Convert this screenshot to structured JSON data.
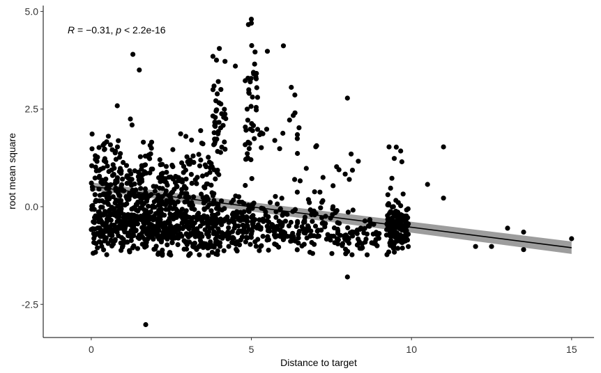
{
  "chart_data": {
    "type": "scatter",
    "xlabel": "Distance to target",
    "ylabel": "root mean square",
    "xlim": [
      -1.5,
      15.7
    ],
    "ylim": [
      -3.35,
      5.15
    ],
    "x_ticks": [
      0,
      5,
      10,
      15
    ],
    "x_tick_labels": [
      "0",
      "5",
      "10",
      "15"
    ],
    "y_ticks": [
      -2.5,
      0.0,
      2.5,
      5.0
    ],
    "y_tick_labels": [
      "-2.5",
      "0.0",
      "2.5",
      "5.0"
    ],
    "grid": false,
    "annotation": {
      "r_symbol": "R",
      "r_text": " = −0.31, ",
      "p_symbol": "p",
      "p_text": " < 2.2e-16"
    },
    "regression": {
      "x": [
        0,
        15
      ],
      "y": [
        0.52,
        -1.05
      ],
      "ci_halfwidth_left": 0.1,
      "ci_halfwidth_right": 0.16,
      "ci_color": "#8c8c8c",
      "line_color": "#000000"
    },
    "point_color": "#000000",
    "notable_points": [
      {
        "x": 1.3,
        "y": 3.9
      },
      {
        "x": 1.5,
        "y": 3.5
      },
      {
        "x": 1.7,
        "y": -3.02
      },
      {
        "x": 4.0,
        "y": 4.05
      },
      {
        "x": 5.0,
        "y": 4.8
      },
      {
        "x": 6.0,
        "y": 4.12
      },
      {
        "x": 5.5,
        "y": 3.98
      },
      {
        "x": 8.0,
        "y": 2.78
      },
      {
        "x": 11.0,
        "y": 1.53
      },
      {
        "x": 11.0,
        "y": 0.22
      },
      {
        "x": 10.5,
        "y": 0.57
      },
      {
        "x": 12.0,
        "y": -1.02
      },
      {
        "x": 12.5,
        "y": -1.02
      },
      {
        "x": 13.0,
        "y": -0.55
      },
      {
        "x": 13.5,
        "y": -0.65
      },
      {
        "x": 13.5,
        "y": -1.1
      },
      {
        "x": 15.0,
        "y": -0.82
      },
      {
        "x": 8.0,
        "y": -1.8
      },
      {
        "x": 9.3,
        "y": 1.53
      },
      {
        "x": 9.7,
        "y": 1.15
      },
      {
        "x": 5.0,
        "y": 4.7
      },
      {
        "x": 4.5,
        "y": 3.6
      },
      {
        "x": 3.8,
        "y": 3.85
      }
    ],
    "clusters": [
      {
        "x_min": 0.0,
        "x_max": 1.0,
        "y_mean": 0.3,
        "y_sd": 0.7,
        "n": 170
      },
      {
        "x_min": 0.0,
        "x_max": 1.0,
        "y_mean": -0.55,
        "y_sd": 0.25,
        "n": 80
      },
      {
        "x_min": 1.0,
        "x_max": 2.0,
        "y_mean": 0.2,
        "y_sd": 0.7,
        "n": 150
      },
      {
        "x_min": 1.0,
        "x_max": 2.0,
        "y_mean": -0.5,
        "y_sd": 0.25,
        "n": 80
      },
      {
        "x_min": 2.0,
        "x_max": 3.0,
        "y_mean": 0.1,
        "y_sd": 0.75,
        "n": 150
      },
      {
        "x_min": 2.0,
        "x_max": 3.0,
        "y_mean": -0.5,
        "y_sd": 0.25,
        "n": 80
      },
      {
        "x_min": 3.0,
        "x_max": 4.0,
        "y_mean": 0.0,
        "y_sd": 0.8,
        "n": 120
      },
      {
        "x_min": 3.0,
        "x_max": 4.0,
        "y_mean": -0.55,
        "y_sd": 0.25,
        "n": 70
      },
      {
        "x_min": 3.8,
        "x_max": 4.2,
        "y_mean": 2.4,
        "y_sd": 0.6,
        "n": 40
      },
      {
        "x_min": 4.0,
        "x_max": 5.0,
        "y_mean": -0.45,
        "y_sd": 0.35,
        "n": 110
      },
      {
        "x_min": 4.8,
        "x_max": 5.2,
        "y_mean": 2.6,
        "y_sd": 0.8,
        "n": 40
      },
      {
        "x_min": 5.0,
        "x_max": 6.0,
        "y_mean": -0.5,
        "y_sd": 0.35,
        "n": 90
      },
      {
        "x_min": 5.0,
        "x_max": 6.5,
        "y_mean": 1.8,
        "y_sd": 0.8,
        "n": 20
      },
      {
        "x_min": 6.0,
        "x_max": 7.0,
        "y_mean": -0.6,
        "y_sd": 0.3,
        "n": 60
      },
      {
        "x_min": 6.0,
        "x_max": 8.5,
        "y_mean": 0.8,
        "y_sd": 0.5,
        "n": 18
      },
      {
        "x_min": 7.0,
        "x_max": 8.0,
        "y_mean": -0.65,
        "y_sd": 0.3,
        "n": 50
      },
      {
        "x_min": 8.0,
        "x_max": 9.0,
        "y_mean": -0.7,
        "y_sd": 0.3,
        "n": 50
      },
      {
        "x_min": 9.2,
        "x_max": 9.9,
        "y_mean": -0.6,
        "y_sd": 0.3,
        "n": 140
      },
      {
        "x_min": 9.2,
        "x_max": 9.9,
        "y_mean": 0.3,
        "y_sd": 0.6,
        "n": 15
      }
    ]
  }
}
